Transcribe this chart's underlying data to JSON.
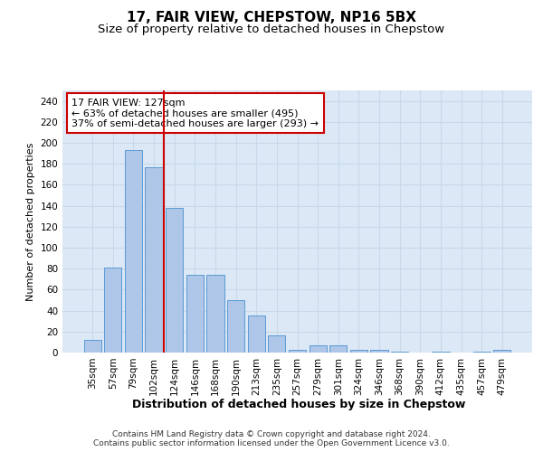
{
  "title1": "17, FAIR VIEW, CHEPSTOW, NP16 5BX",
  "title2": "Size of property relative to detached houses in Chepstow",
  "xlabel": "Distribution of detached houses by size in Chepstow",
  "ylabel": "Number of detached properties",
  "categories": [
    "35sqm",
    "57sqm",
    "79sqm",
    "102sqm",
    "124sqm",
    "146sqm",
    "168sqm",
    "190sqm",
    "213sqm",
    "235sqm",
    "257sqm",
    "279sqm",
    "301sqm",
    "324sqm",
    "346sqm",
    "368sqm",
    "390sqm",
    "412sqm",
    "435sqm",
    "457sqm",
    "479sqm"
  ],
  "values": [
    12,
    81,
    193,
    177,
    138,
    74,
    74,
    50,
    35,
    16,
    3,
    7,
    7,
    3,
    3,
    1,
    0,
    1,
    0,
    1,
    3
  ],
  "bar_color": "#aec6e8",
  "bar_edge_color": "#5a9bd5",
  "grid_color": "#c8d8ea",
  "background_color": "#dce8f5",
  "vline_x_index": 4,
  "vline_color": "#cc0000",
  "annotation_text": "17 FAIR VIEW: 127sqm\n← 63% of detached houses are smaller (495)\n37% of semi-detached houses are larger (293) →",
  "annotation_box_color": "#ffffff",
  "annotation_box_edge": "#cc0000",
  "ylim": [
    0,
    250
  ],
  "yticks": [
    0,
    20,
    40,
    60,
    80,
    100,
    120,
    140,
    160,
    180,
    200,
    220,
    240
  ],
  "footer1": "Contains HM Land Registry data © Crown copyright and database right 2024.",
  "footer2": "Contains public sector information licensed under the Open Government Licence v3.0.",
  "title1_fontsize": 11,
  "title2_fontsize": 9.5,
  "xlabel_fontsize": 9,
  "ylabel_fontsize": 8,
  "tick_fontsize": 7.5,
  "annotation_fontsize": 8,
  "footer_fontsize": 6.5
}
